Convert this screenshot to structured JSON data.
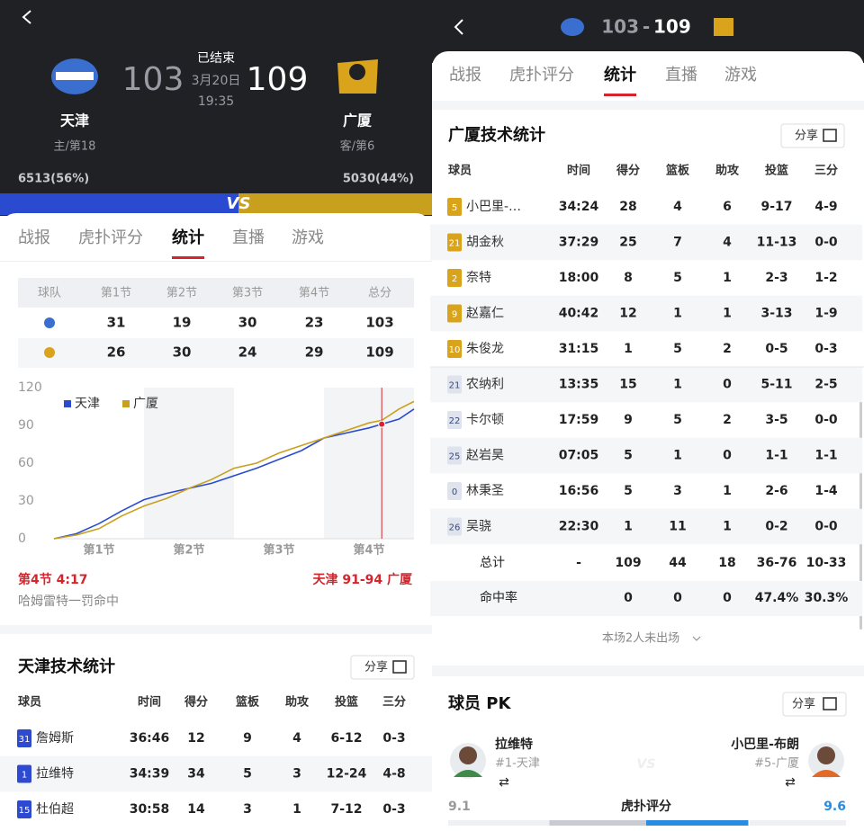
{
  "left": {
    "header": {
      "home_score": 103,
      "away_score": 109,
      "status": "已结束",
      "date": "3月20日",
      "time": "19:35",
      "home_name": "天津",
      "away_name": "广厦",
      "home_rank": "主/第18",
      "away_rank": "客/第6",
      "home_support": "6513(56%)",
      "away_support": "5030(44%)",
      "vs": "VS"
    },
    "tabs": [
      "战报",
      "虎扑评分",
      "统计",
      "直播",
      "游戏"
    ],
    "quarters": {
      "header": [
        "球队",
        "第1节",
        "第2节",
        "第3节",
        "第4节",
        "总分"
      ],
      "rows": [
        [
          31,
          19,
          30,
          23,
          103
        ],
        [
          26,
          30,
          24,
          29,
          109
        ]
      ]
    },
    "chart": {
      "type": "line",
      "x": [
        0,
        3,
        6,
        9,
        12,
        15,
        18,
        21,
        24,
        27,
        30,
        33,
        36,
        39,
        42,
        43.7,
        46,
        48
      ],
      "series": [
        {
          "name": "天津",
          "color": "#2a4bd0",
          "values": [
            0,
            4,
            12,
            22,
            31,
            36,
            40,
            44,
            50,
            56,
            63,
            70,
            80,
            84,
            88,
            91,
            95,
            103
          ]
        },
        {
          "name": "广厦",
          "color": "#c9a01e",
          "values": [
            0,
            3,
            8,
            18,
            26,
            32,
            40,
            47,
            56,
            60,
            68,
            74,
            80,
            86,
            92,
            94,
            103,
            109
          ]
        }
      ],
      "xlim": [
        0,
        48
      ],
      "xticks": [
        {
          "value": 6,
          "label": "第1节"
        },
        {
          "value": 18,
          "label": "第2节"
        },
        {
          "value": 30,
          "label": "第3节"
        },
        {
          "value": 42,
          "label": "第4节"
        }
      ],
      "ylim": [
        0,
        120
      ],
      "yticks": [
        0,
        30,
        60,
        90,
        120
      ]
    },
    "event": {
      "time": "第4节 4:17",
      "score": "天津 91-94 广厦",
      "text": "哈姆雷特一罚命中"
    },
    "stats": {
      "title": "天津技术统计",
      "share": "分享",
      "header": [
        "球员",
        "时间",
        "得分",
        "篮板",
        "助攻",
        "投篮",
        "三分"
      ],
      "rows": [
        {
          "num": 31,
          "name": "詹姆斯",
          "cells": [
            "36:46",
            12,
            9,
            4,
            "6-12",
            "0-3"
          ]
        },
        {
          "num": 1,
          "name": "拉维特",
          "cells": [
            "34:39",
            34,
            5,
            3,
            "12-24",
            "4-8"
          ]
        },
        {
          "num": 15,
          "name": "杜伯超",
          "cells": [
            "30:58",
            14,
            3,
            1,
            "7-12",
            "0-3"
          ]
        }
      ]
    }
  },
  "right": {
    "header": {
      "home_score": 103,
      "sep": "-",
      "away_score": 109
    },
    "tabs": [
      "战报",
      "虎扑评分",
      "统计",
      "直播",
      "游戏"
    ],
    "stats": {
      "title": "广厦技术统计",
      "share": "分享",
      "header": [
        "球员",
        "时间",
        "得分",
        "篮板",
        "助攻",
        "投篮",
        "三分"
      ],
      "rows": [
        {
          "num": 5,
          "name": "小巴里-…",
          "cells": [
            "34:24",
            28,
            4,
            6,
            "9-17",
            "4-9"
          ]
        },
        {
          "num": 21,
          "name": "胡金秋",
          "cells": [
            "37:29",
            25,
            7,
            4,
            "11-13",
            "0-0"
          ]
        },
        {
          "num": 2,
          "name": "奈特",
          "cells": [
            "18:00",
            8,
            5,
            1,
            "2-3",
            "1-2"
          ]
        },
        {
          "num": 9,
          "name": "赵嘉仁",
          "cells": [
            "40:42",
            12,
            1,
            1,
            "3-13",
            "1-9"
          ]
        },
        {
          "num": 10,
          "name": "朱俊龙",
          "cells": [
            "31:15",
            1,
            5,
            2,
            "0-5",
            "0-3"
          ]
        },
        {
          "num": 21,
          "name": "农纳利",
          "cells": [
            "13:35",
            15,
            1,
            0,
            "5-11",
            "2-5"
          ]
        },
        {
          "num": 22,
          "name": "卡尔顿",
          "cells": [
            "17:59",
            9,
            5,
            2,
            "3-5",
            "0-0"
          ]
        },
        {
          "num": 25,
          "name": "赵岩昊",
          "cells": [
            "07:05",
            5,
            1,
            0,
            "1-1",
            "1-1"
          ]
        },
        {
          "num": 0,
          "name": "林秉圣",
          "cells": [
            "16:56",
            5,
            3,
            1,
            "2-6",
            "1-4"
          ]
        },
        {
          "num": 26,
          "name": "吴骁",
          "cells": [
            "22:30",
            1,
            11,
            1,
            "0-2",
            "0-0"
          ]
        }
      ],
      "total": [
        "总计",
        "-",
        109,
        44,
        18,
        "36-76",
        "10-33"
      ],
      "rate": [
        "命中率",
        0,
        0,
        0,
        "47.4%",
        "30.3%"
      ]
    },
    "absent": "本场2人未出场",
    "pk": {
      "title": "球员 PK",
      "share": "分享",
      "left_name": "拉维特",
      "left_team": "#1-天津",
      "right_name": "小巴里-布朗",
      "right_team": "#5-广厦",
      "left_score": 9.1,
      "label": "虎扑评分",
      "right_score": 9.6
    }
  }
}
